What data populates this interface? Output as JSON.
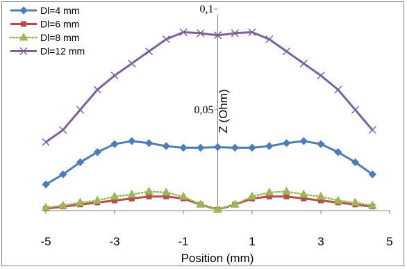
{
  "chart_data": {
    "type": "line",
    "xlabel": "Position (mm)",
    "ylabel": "Z (Ohm)",
    "xlim": [
      -5,
      5
    ],
    "ylim": [
      0,
      0.1
    ],
    "x_ticks": [
      -5,
      -3,
      -1,
      1,
      3,
      5
    ],
    "x_tick_labels": [
      "-5",
      "-3",
      "-1",
      "1",
      "3",
      "5"
    ],
    "y_ticks": [
      0.05,
      0.1
    ],
    "y_tick_labels": [
      "0,05",
      "0,1"
    ],
    "grid": false,
    "legend_position": "top-left",
    "x": [
      -5,
      -4.5,
      -4,
      -3.5,
      -3,
      -2.5,
      -2,
      -1.5,
      -1,
      -0.5,
      0,
      0.5,
      1,
      1.5,
      2,
      2.5,
      3,
      3.5,
      4,
      4.5
    ],
    "series": [
      {
        "name": "Dl=4 mm",
        "color": "#4a7ebb",
        "marker": "diamond",
        "line_style": "solid",
        "values": [
          0.013,
          0.018,
          0.024,
          0.029,
          0.033,
          0.0345,
          0.0335,
          0.032,
          0.0312,
          0.0312,
          0.0315,
          0.0312,
          0.0312,
          0.032,
          0.0335,
          0.0345,
          0.033,
          0.029,
          0.024,
          0.018
        ]
      },
      {
        "name": "Dl=6 mm",
        "color": "#be4b48",
        "marker": "square",
        "line_style": "solid",
        "values": [
          0.001,
          0.002,
          0.003,
          0.004,
          0.005,
          0.006,
          0.007,
          0.007,
          0.006,
          0.003,
          0.0005,
          0.003,
          0.006,
          0.007,
          0.007,
          0.006,
          0.005,
          0.004,
          0.003,
          0.002
        ]
      },
      {
        "name": "Dl=8 mm",
        "color": "#98b954",
        "marker": "triangle",
        "line_style": "dotted",
        "values": [
          0.0015,
          0.0025,
          0.004,
          0.005,
          0.007,
          0.008,
          0.0095,
          0.009,
          0.007,
          0.003,
          0.0005,
          0.003,
          0.007,
          0.009,
          0.0095,
          0.008,
          0.007,
          0.005,
          0.004,
          0.0025
        ]
      },
      {
        "name": "Dl=12 mm",
        "color": "#7d60a0",
        "marker": "x",
        "line_style": "solid",
        "values": [
          0.034,
          0.04,
          0.05,
          0.06,
          0.067,
          0.073,
          0.079,
          0.085,
          0.0885,
          0.088,
          0.087,
          0.088,
          0.0885,
          0.085,
          0.079,
          0.073,
          0.067,
          0.06,
          0.05,
          0.04
        ]
      }
    ]
  }
}
